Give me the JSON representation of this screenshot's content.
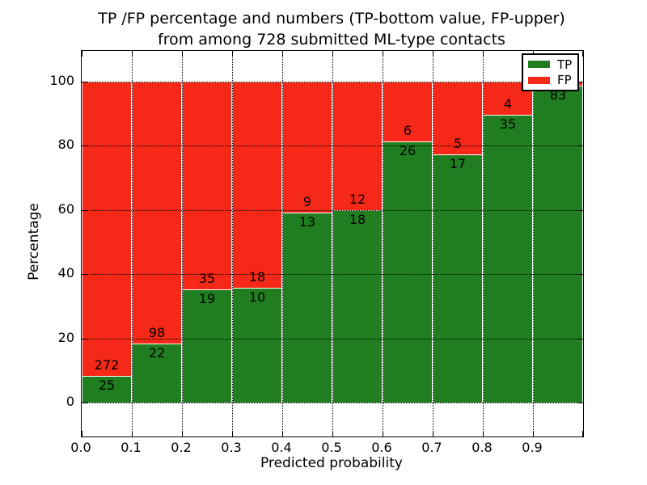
{
  "title": {
    "line1": "TP /FP percentage and numbers (TP-bottom value, FP-upper)",
    "line2": "from among 728 submitted ML-type contacts"
  },
  "chart_data": {
    "type": "bar",
    "stacked": true,
    "normalized_to_percent": true,
    "title": "TP /FP percentage and numbers (TP-bottom value, FP-upper)\nfrom among 728 submitted ML-type contacts",
    "xlabel": "Predicted probability",
    "ylabel": "Percentage",
    "total_contacts": 728,
    "xlim": [
      0.0,
      1.0
    ],
    "ylim": [
      -10.6,
      109.6
    ],
    "bin_edges": [
      0.0,
      0.1,
      0.2,
      0.3,
      0.4,
      0.5,
      0.6,
      0.7,
      0.8,
      0.9,
      1.0
    ],
    "categories": [
      "0.0-0.1",
      "0.1-0.2",
      "0.2-0.3",
      "0.3-0.4",
      "0.4-0.5",
      "0.5-0.6",
      "0.6-0.7",
      "0.7-0.8",
      "0.8-0.9",
      "0.9-1.0"
    ],
    "xticks": [
      "0.0",
      "0.1",
      "0.2",
      "0.3",
      "0.4",
      "0.5",
      "0.6",
      "0.7",
      "0.8",
      "0.9"
    ],
    "yticks": [
      0,
      20,
      40,
      60,
      80,
      100
    ],
    "grid": "dotted-black-on-top",
    "bar_edge_color": "#ffffff",
    "legend": {
      "position": "upper-right",
      "entries": [
        {
          "label": "TP",
          "color": "#207e20"
        },
        {
          "label": "FP",
          "color": "#f62817"
        }
      ]
    },
    "series": [
      {
        "name": "TP",
        "color": "#207e20",
        "counts": [
          25,
          22,
          19,
          10,
          13,
          18,
          26,
          17,
          35,
          83
        ],
        "pct": [
          8.42,
          18.33,
          35.19,
          35.71,
          59.09,
          60.0,
          81.25,
          77.27,
          89.74,
          98.81
        ],
        "labels": [
          "25",
          "22",
          "19",
          "10",
          "13",
          "18",
          "26",
          "17",
          "35",
          "83"
        ]
      },
      {
        "name": "FP",
        "color": "#f62817",
        "counts": [
          272,
          98,
          35,
          18,
          9,
          12,
          6,
          5,
          4,
          1
        ],
        "pct": [
          91.58,
          81.67,
          64.81,
          64.29,
          40.91,
          40.0,
          18.75,
          22.73,
          10.26,
          1.19
        ],
        "labels": [
          "272",
          "98",
          "35",
          "18",
          "9",
          "12",
          "6",
          "5",
          "4",
          ""
        ],
        "note": "FP count label of last bin is hidden behind the legend box"
      }
    ]
  }
}
